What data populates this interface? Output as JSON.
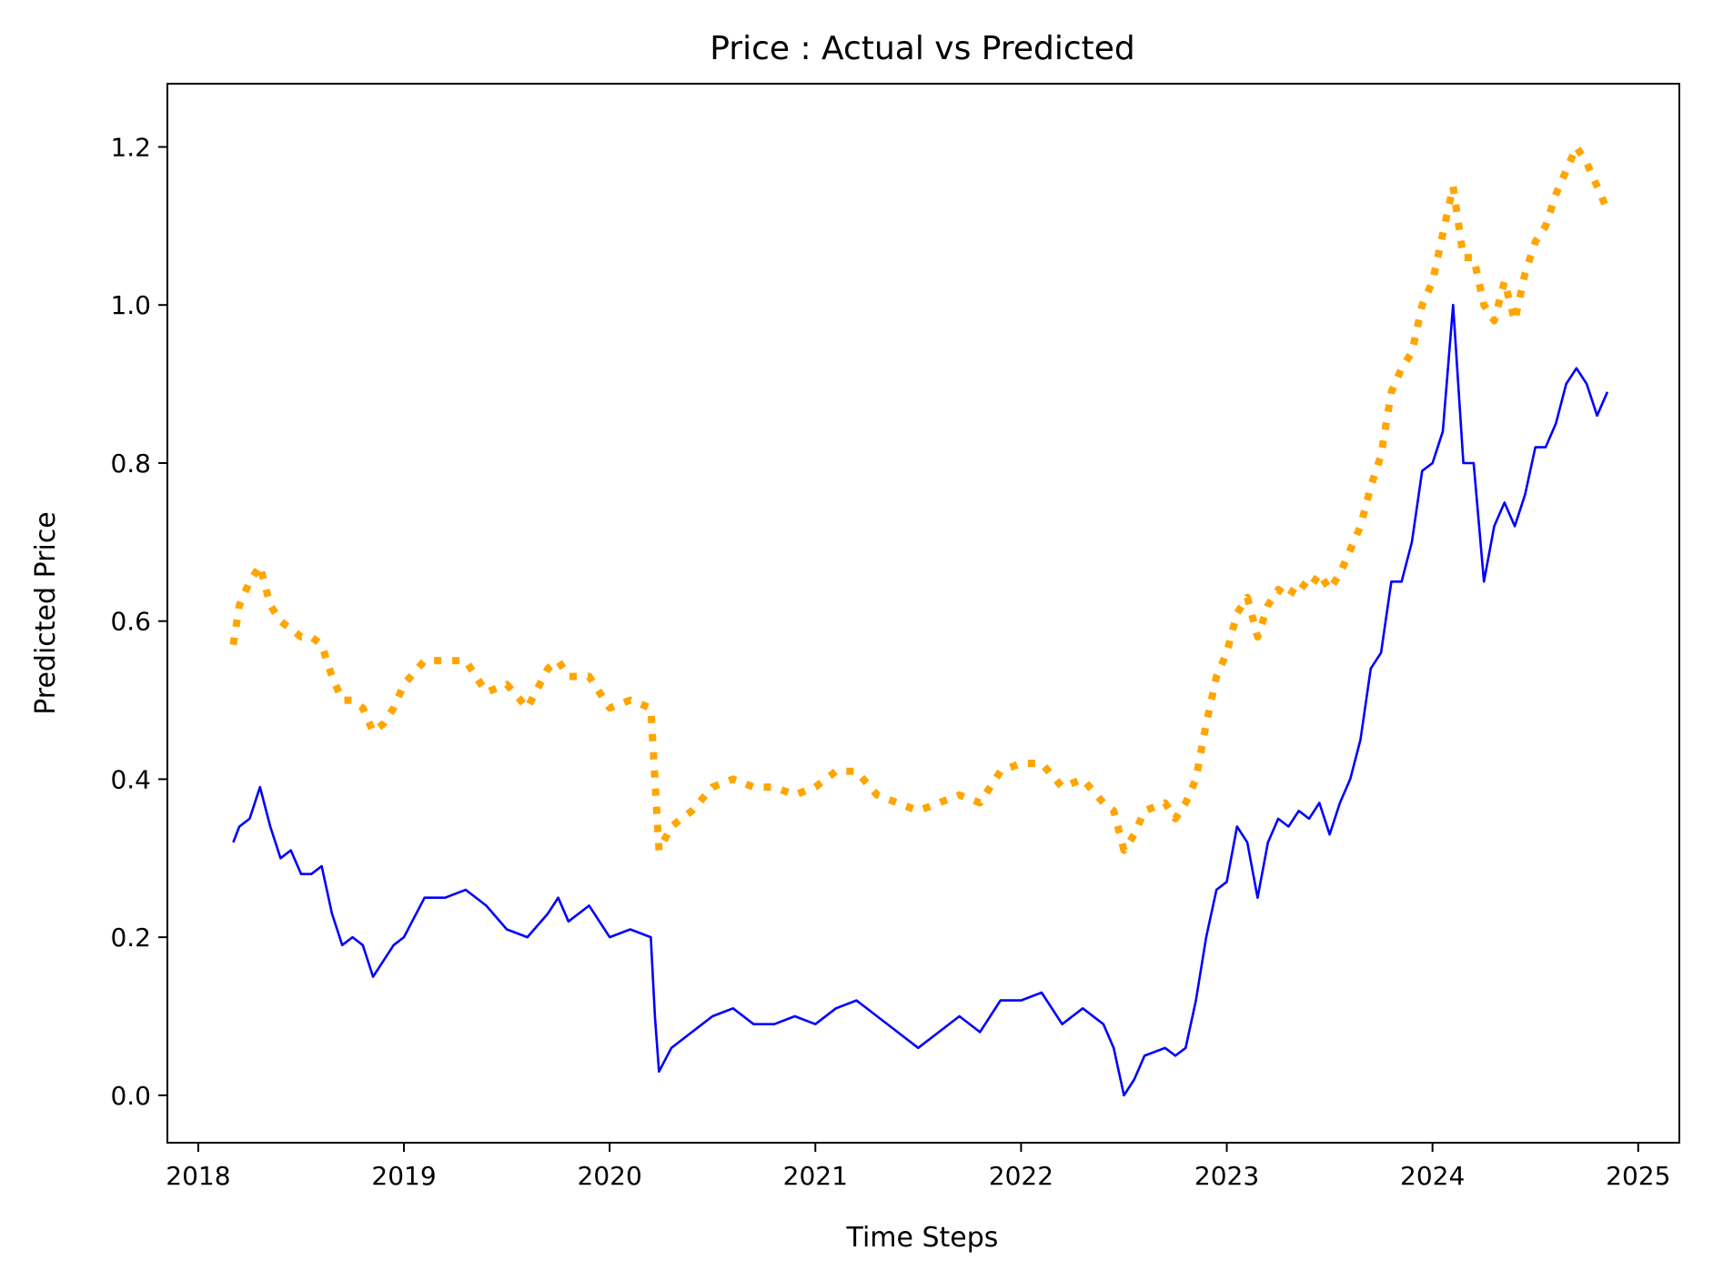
{
  "chart_data": {
    "type": "line",
    "title": "Price : Actual vs Predicted",
    "xlabel": "Time Steps",
    "ylabel": "Predicted Price",
    "xlim": [
      2017.85,
      2025.2
    ],
    "ylim": [
      -0.06,
      1.28
    ],
    "xticks": [
      2018,
      2019,
      2020,
      2021,
      2022,
      2023,
      2024,
      2025
    ],
    "yticks": [
      0.0,
      0.2,
      0.4,
      0.6,
      0.8,
      1.0,
      1.2
    ],
    "grid": false,
    "series": [
      {
        "color": "#0000ff",
        "style": "solid",
        "x": [
          2018.17,
          2018.2,
          2018.25,
          2018.3,
          2018.35,
          2018.4,
          2018.45,
          2018.5,
          2018.55,
          2018.6,
          2018.65,
          2018.7,
          2018.75,
          2018.8,
          2018.85,
          2018.9,
          2018.95,
          2019.0,
          2019.1,
          2019.2,
          2019.3,
          2019.4,
          2019.5,
          2019.6,
          2019.7,
          2019.75,
          2019.8,
          2019.9,
          2020.0,
          2020.1,
          2020.2,
          2020.22,
          2020.24,
          2020.3,
          2020.4,
          2020.5,
          2020.6,
          2020.7,
          2020.8,
          2020.9,
          2021.0,
          2021.1,
          2021.2,
          2021.3,
          2021.4,
          2021.5,
          2021.6,
          2021.7,
          2021.8,
          2021.9,
          2022.0,
          2022.1,
          2022.2,
          2022.3,
          2022.4,
          2022.45,
          2022.5,
          2022.55,
          2022.6,
          2022.7,
          2022.75,
          2022.8,
          2022.85,
          2022.9,
          2022.95,
          2023.0,
          2023.05,
          2023.1,
          2023.15,
          2023.2,
          2023.25,
          2023.3,
          2023.35,
          2023.4,
          2023.45,
          2023.5,
          2023.55,
          2023.6,
          2023.65,
          2023.7,
          2023.75,
          2023.8,
          2023.85,
          2023.9,
          2023.95,
          2024.0,
          2024.05,
          2024.1,
          2024.15,
          2024.2,
          2024.25,
          2024.3,
          2024.35,
          2024.4,
          2024.45,
          2024.5,
          2024.55,
          2024.6,
          2024.65,
          2024.7,
          2024.75,
          2024.8,
          2024.85
        ],
        "y": [
          0.32,
          0.34,
          0.35,
          0.39,
          0.34,
          0.3,
          0.31,
          0.28,
          0.28,
          0.29,
          0.23,
          0.19,
          0.2,
          0.19,
          0.15,
          0.17,
          0.19,
          0.2,
          0.25,
          0.25,
          0.26,
          0.24,
          0.21,
          0.2,
          0.23,
          0.25,
          0.22,
          0.24,
          0.2,
          0.21,
          0.2,
          0.1,
          0.03,
          0.06,
          0.08,
          0.1,
          0.11,
          0.09,
          0.09,
          0.1,
          0.09,
          0.11,
          0.12,
          0.1,
          0.08,
          0.06,
          0.08,
          0.1,
          0.08,
          0.12,
          0.12,
          0.13,
          0.09,
          0.11,
          0.09,
          0.06,
          0.0,
          0.02,
          0.05,
          0.06,
          0.05,
          0.06,
          0.12,
          0.2,
          0.26,
          0.27,
          0.34,
          0.32,
          0.25,
          0.32,
          0.35,
          0.34,
          0.36,
          0.35,
          0.37,
          0.33,
          0.37,
          0.4,
          0.45,
          0.54,
          0.56,
          0.65,
          0.65,
          0.7,
          0.79,
          0.8,
          0.84,
          1.0,
          0.8,
          0.8,
          0.65,
          0.72,
          0.75,
          0.72,
          0.76,
          0.82,
          0.82,
          0.85,
          0.9,
          0.92,
          0.9,
          0.86,
          0.89
        ]
      },
      {
        "color": "#ffa500",
        "style": "dotted",
        "x": [
          2018.17,
          2018.2,
          2018.25,
          2018.3,
          2018.35,
          2018.4,
          2018.45,
          2018.5,
          2018.55,
          2018.6,
          2018.65,
          2018.7,
          2018.75,
          2018.8,
          2018.85,
          2018.9,
          2018.95,
          2019.0,
          2019.1,
          2019.2,
          2019.3,
          2019.4,
          2019.5,
          2019.6,
          2019.7,
          2019.75,
          2019.8,
          2019.9,
          2020.0,
          2020.1,
          2020.2,
          2020.22,
          2020.24,
          2020.3,
          2020.4,
          2020.5,
          2020.6,
          2020.7,
          2020.8,
          2020.9,
          2021.0,
          2021.1,
          2021.2,
          2021.3,
          2021.4,
          2021.5,
          2021.6,
          2021.7,
          2021.8,
          2021.9,
          2022.0,
          2022.1,
          2022.2,
          2022.3,
          2022.4,
          2022.45,
          2022.5,
          2022.55,
          2022.6,
          2022.7,
          2022.75,
          2022.8,
          2022.85,
          2022.9,
          2022.95,
          2023.0,
          2023.05,
          2023.1,
          2023.15,
          2023.2,
          2023.25,
          2023.3,
          2023.35,
          2023.4,
          2023.45,
          2023.5,
          2023.55,
          2023.6,
          2023.65,
          2023.7,
          2023.75,
          2023.8,
          2023.85,
          2023.9,
          2023.95,
          2024.0,
          2024.05,
          2024.1,
          2024.15,
          2024.2,
          2024.25,
          2024.3,
          2024.35,
          2024.4,
          2024.45,
          2024.5,
          2024.55,
          2024.6,
          2024.65,
          2024.7,
          2024.75,
          2024.8,
          2024.85
        ],
        "y": [
          0.57,
          0.62,
          0.65,
          0.67,
          0.62,
          0.6,
          0.59,
          0.58,
          0.58,
          0.57,
          0.53,
          0.5,
          0.5,
          0.49,
          0.46,
          0.47,
          0.49,
          0.52,
          0.55,
          0.55,
          0.55,
          0.51,
          0.52,
          0.49,
          0.54,
          0.55,
          0.53,
          0.53,
          0.49,
          0.5,
          0.49,
          0.4,
          0.31,
          0.34,
          0.36,
          0.39,
          0.4,
          0.39,
          0.39,
          0.38,
          0.39,
          0.41,
          0.41,
          0.38,
          0.37,
          0.36,
          0.37,
          0.38,
          0.37,
          0.41,
          0.42,
          0.42,
          0.39,
          0.4,
          0.37,
          0.36,
          0.31,
          0.33,
          0.36,
          0.37,
          0.35,
          0.37,
          0.4,
          0.47,
          0.53,
          0.56,
          0.61,
          0.63,
          0.58,
          0.62,
          0.64,
          0.63,
          0.65,
          0.64,
          0.66,
          0.64,
          0.66,
          0.69,
          0.72,
          0.77,
          0.81,
          0.89,
          0.92,
          0.94,
          1.0,
          1.03,
          1.09,
          1.15,
          1.06,
          1.06,
          1.0,
          0.98,
          1.03,
          0.98,
          1.04,
          1.08,
          1.1,
          1.14,
          1.17,
          1.2,
          1.18,
          1.15,
          1.12
        ]
      }
    ]
  }
}
